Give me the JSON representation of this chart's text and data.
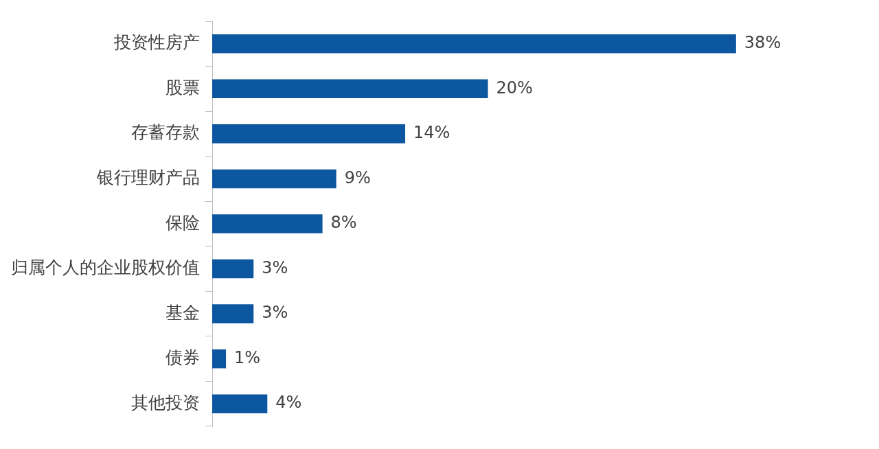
{
  "chart_data": {
    "type": "bar",
    "orientation": "horizontal",
    "categories": [
      "投资性房产",
      "股票",
      "存蓄存款",
      "银行理财产品",
      "保险",
      "归属个人的企业股权价值",
      "基金",
      "债券",
      "其他投资"
    ],
    "values": [
      38,
      20,
      14,
      9,
      8,
      3,
      3,
      1,
      4
    ],
    "color": "#0d56a0",
    "value_labels": [
      "38%",
      "20%",
      "14%",
      "9%",
      "8%",
      "3%",
      "3%",
      "1%",
      "4%"
    ],
    "legend": false
  }
}
